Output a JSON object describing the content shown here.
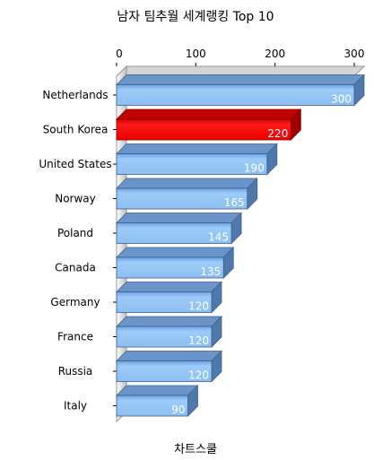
{
  "chart_data": {
    "type": "bar",
    "orientation": "horizontal",
    "style": "3d",
    "title": "남자 팀추월 세계랭킹 Top 10",
    "footer": "차트스쿨",
    "xlim": [
      0,
      300
    ],
    "xticks": [
      0,
      100,
      200,
      300
    ],
    "xaxis_position": "top",
    "categories": [
      "Netherlands",
      "South Korea",
      "United States",
      "Norway",
      "Poland",
      "Canada",
      "Germany",
      "France",
      "Russia",
      "Italy"
    ],
    "values": [
      300,
      220,
      190,
      165,
      145,
      135,
      120,
      120,
      120,
      90
    ],
    "highlight_index": 1,
    "colors": {
      "bar": "#90c3f5",
      "bar_highlight": "#ff0000",
      "axis": "#000000"
    }
  }
}
